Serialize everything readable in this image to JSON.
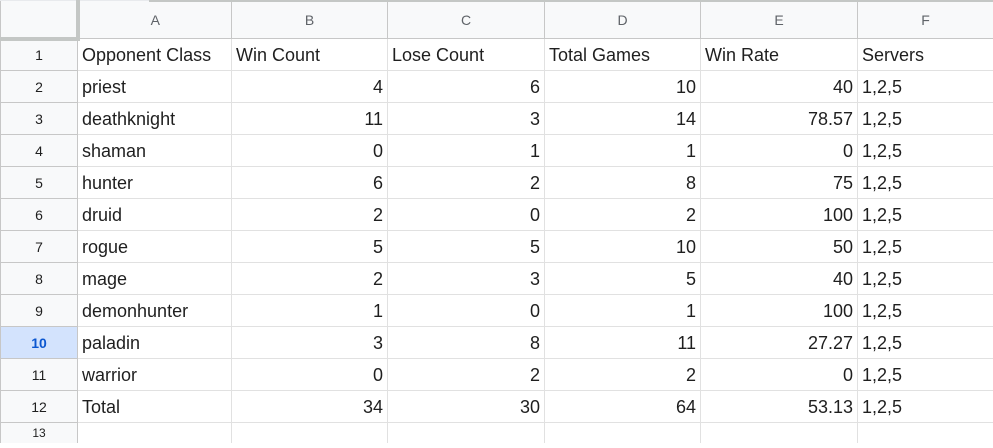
{
  "columns": [
    "A",
    "B",
    "C",
    "D",
    "E",
    "F"
  ],
  "row_numbers": [
    "1",
    "2",
    "3",
    "4",
    "5",
    "6",
    "7",
    "8",
    "9",
    "10",
    "11",
    "12",
    "13"
  ],
  "selected_row": "10",
  "header_row": [
    "Opponent Class",
    "Win Count",
    "Lose Count",
    "Total Games",
    "Win Rate",
    "Servers"
  ],
  "rows": [
    {
      "cls": "priest",
      "win": "4",
      "lose": "6",
      "total": "10",
      "rate": "40",
      "servers": "1,2,5"
    },
    {
      "cls": "deathknight",
      "win": "11",
      "lose": "3",
      "total": "14",
      "rate": "78.57",
      "servers": "1,2,5"
    },
    {
      "cls": "shaman",
      "win": "0",
      "lose": "1",
      "total": "1",
      "rate": "0",
      "servers": "1,2,5"
    },
    {
      "cls": "hunter",
      "win": "6",
      "lose": "2",
      "total": "8",
      "rate": "75",
      "servers": "1,2,5"
    },
    {
      "cls": "druid",
      "win": "2",
      "lose": "0",
      "total": "2",
      "rate": "100",
      "servers": "1,2,5"
    },
    {
      "cls": "rogue",
      "win": "5",
      "lose": "5",
      "total": "10",
      "rate": "50",
      "servers": "1,2,5"
    },
    {
      "cls": "mage",
      "win": "2",
      "lose": "3",
      "total": "5",
      "rate": "40",
      "servers": "1,2,5"
    },
    {
      "cls": "demonhunter",
      "win": "1",
      "lose": "0",
      "total": "1",
      "rate": "100",
      "servers": "1,2,5"
    },
    {
      "cls": "paladin",
      "win": "3",
      "lose": "8",
      "total": "11",
      "rate": "27.27",
      "servers": "1,2,5"
    },
    {
      "cls": "warrior",
      "win": "0",
      "lose": "2",
      "total": "2",
      "rate": "0",
      "servers": "1,2,5"
    },
    {
      "cls": "Total",
      "win": "34",
      "lose": "30",
      "total": "64",
      "rate": "53.13",
      "servers": "1,2,5"
    }
  ]
}
